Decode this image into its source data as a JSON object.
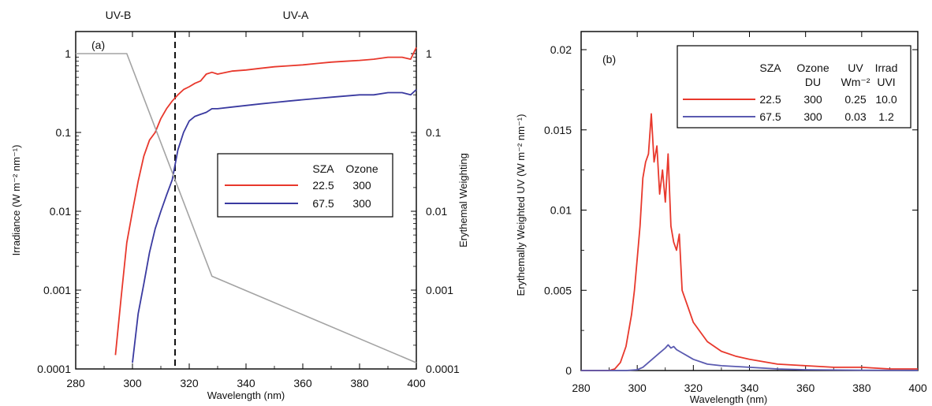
{
  "chart_data": [
    {
      "type": "line",
      "panel_label": "(a)",
      "xlabel": "Wavelength (nm)",
      "ylabel": "Irradiance (W m⁻² nm⁻¹)",
      "ylabel_right": "Erythemal Weighting",
      "xlim": [
        280,
        400
      ],
      "ylim": [
        0.0001,
        1.2
      ],
      "yscale": "log",
      "xticks": [
        "280",
        "300",
        "320",
        "340",
        "360",
        "380",
        "400"
      ],
      "yticks": [
        "0.0001",
        "0.001",
        "0.01",
        "0.1",
        "1"
      ],
      "yticks_right": [
        "0.0001",
        "0.001",
        "0.01",
        "0.1",
        "1"
      ],
      "region_labels": [
        "UV-B",
        "UV-A"
      ],
      "divider_x": 315,
      "legend": {
        "headers": [
          "SZA",
          "Ozone"
        ],
        "rows": [
          {
            "sza": "22.5",
            "ozone": "300",
            "color": "#e8382c"
          },
          {
            "sza": "67.5",
            "ozone": "300",
            "color": "#3a3aa0"
          }
        ]
      },
      "series": [
        {
          "color": "#e8382c",
          "x": [
            294,
            296,
            298,
            300,
            302,
            304,
            306,
            308,
            310,
            312,
            314,
            316,
            318,
            320,
            322,
            324,
            326,
            328,
            330,
            335,
            340,
            345,
            350,
            355,
            360,
            365,
            370,
            375,
            380,
            385,
            390,
            395,
            398,
            400
          ],
          "y": [
            0.00015,
            0.0008,
            0.004,
            0.01,
            0.024,
            0.05,
            0.08,
            0.1,
            0.15,
            0.2,
            0.25,
            0.3,
            0.35,
            0.38,
            0.42,
            0.45,
            0.55,
            0.58,
            0.55,
            0.6,
            0.62,
            0.65,
            0.68,
            0.7,
            0.72,
            0.75,
            0.78,
            0.8,
            0.82,
            0.85,
            0.9,
            0.9,
            0.85,
            1.2
          ]
        },
        {
          "color": "#3a3aa0",
          "x": [
            300,
            302,
            304,
            306,
            308,
            310,
            312,
            314,
            316,
            318,
            320,
            322,
            324,
            326,
            328,
            330,
            335,
            340,
            345,
            350,
            355,
            360,
            365,
            370,
            375,
            380,
            385,
            390,
            395,
            398,
            400
          ],
          "y": [
            0.00012,
            0.0005,
            0.0012,
            0.003,
            0.006,
            0.01,
            0.016,
            0.025,
            0.06,
            0.1,
            0.14,
            0.16,
            0.17,
            0.18,
            0.2,
            0.2,
            0.21,
            0.22,
            0.23,
            0.24,
            0.25,
            0.26,
            0.27,
            0.28,
            0.29,
            0.3,
            0.3,
            0.32,
            0.32,
            0.3,
            0.35
          ]
        },
        {
          "color": "#a3a3a3",
          "x": [
            280,
            298,
            328,
            400
          ],
          "y": [
            1,
            1,
            0.0015,
            0.00012
          ]
        }
      ]
    },
    {
      "type": "line",
      "panel_label": "(b)",
      "xlabel": "Wavelength (nm)",
      "ylabel": "Erythemally Weighted UV (W m⁻² nm⁻¹)",
      "xlim": [
        280,
        400
      ],
      "ylim": [
        0,
        0.0215
      ],
      "xticks": [
        "280",
        "300",
        "320",
        "340",
        "360",
        "380",
        "400"
      ],
      "yticks": [
        "0",
        "0.005",
        "0.01",
        "0.015",
        "0.02"
      ],
      "yticks_values": [
        0,
        0.005,
        0.01,
        0.015,
        0.02
      ],
      "legend": {
        "headers1": [
          "SZA",
          "Ozone",
          "UV",
          "Irrad"
        ],
        "headers2": [
          "DU",
          "Wm⁻²",
          "UVI"
        ],
        "rows": [
          {
            "sza": "22.5",
            "ozone": "300",
            "uv": "0.25",
            "uvi": "10.0",
            "color": "#e8382c"
          },
          {
            "sza": "67.5",
            "ozone": "300",
            "uv": "0.03",
            "uvi": "1.2",
            "color": "#5a5ab0"
          }
        ]
      },
      "series": [
        {
          "color": "#e8382c",
          "x": [
            280,
            290,
            292,
            294,
            296,
            298,
            299,
            300,
            301,
            302,
            303,
            304,
            305,
            306,
            307,
            308,
            309,
            310,
            311,
            312,
            313,
            314,
            315,
            316,
            318,
            320,
            325,
            330,
            335,
            340,
            350,
            360,
            370,
            380,
            390,
            400
          ],
          "y": [
            0,
            0,
            0.0001,
            0.0005,
            0.0015,
            0.0035,
            0.005,
            0.007,
            0.009,
            0.012,
            0.013,
            0.0135,
            0.016,
            0.013,
            0.014,
            0.011,
            0.0125,
            0.0105,
            0.0135,
            0.009,
            0.008,
            0.0075,
            0.0085,
            0.005,
            0.004,
            0.003,
            0.0018,
            0.0012,
            0.0009,
            0.0007,
            0.0004,
            0.0003,
            0.0002,
            0.0002,
            0.0001,
            0.0001
          ]
        },
        {
          "color": "#5a5ab0",
          "x": [
            280,
            296,
            300,
            302,
            304,
            306,
            308,
            310,
            311,
            312,
            313,
            314,
            316,
            318,
            320,
            325,
            330,
            340,
            350,
            360,
            380,
            400
          ],
          "y": [
            0,
            0,
            5e-05,
            0.0002,
            0.0005,
            0.0008,
            0.0011,
            0.0014,
            0.0016,
            0.0014,
            0.0015,
            0.0013,
            0.0011,
            0.0009,
            0.0007,
            0.0004,
            0.0003,
            0.0002,
            0.0001,
            5e-05,
            2e-05,
            1e-05
          ]
        }
      ]
    }
  ]
}
